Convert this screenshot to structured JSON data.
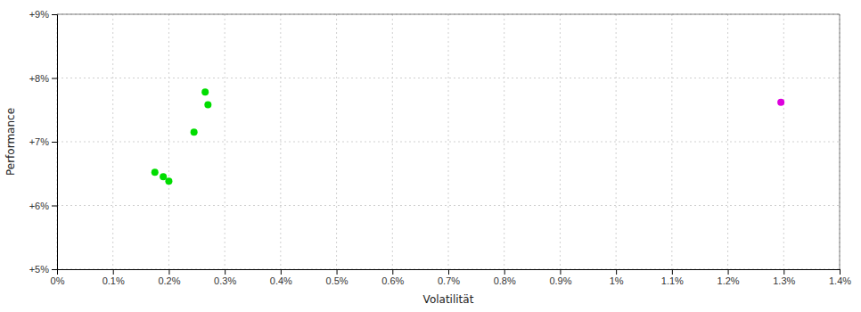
{
  "chart_data": {
    "type": "scatter",
    "xlabel": "Volatilität",
    "ylabel": "Performance",
    "xlim": [
      0.0,
      0.014
    ],
    "ylim": [
      0.05,
      0.09
    ],
    "xticks": [
      {
        "value": 0.0,
        "label": "0%"
      },
      {
        "value": 0.001,
        "label": "0.1%"
      },
      {
        "value": 0.002,
        "label": "0.2%"
      },
      {
        "value": 0.003,
        "label": "0.3%"
      },
      {
        "value": 0.004,
        "label": "0.4%"
      },
      {
        "value": 0.005,
        "label": "0.5%"
      },
      {
        "value": 0.006,
        "label": "0.6%"
      },
      {
        "value": 0.007,
        "label": "0.7%"
      },
      {
        "value": 0.008,
        "label": "0.8%"
      },
      {
        "value": 0.009,
        "label": "0.9%"
      },
      {
        "value": 0.01,
        "label": "1%"
      },
      {
        "value": 0.011,
        "label": "1.1%"
      },
      {
        "value": 0.012,
        "label": "1.2%"
      },
      {
        "value": 0.013,
        "label": "1.3%"
      },
      {
        "value": 0.014,
        "label": "1.4%"
      }
    ],
    "yticks": [
      {
        "value": 0.05,
        "label": "+5%"
      },
      {
        "value": 0.06,
        "label": "+6%"
      },
      {
        "value": 0.07,
        "label": "+7%"
      },
      {
        "value": 0.08,
        "label": "+8%"
      },
      {
        "value": 0.09,
        "label": "+9%"
      }
    ],
    "grid": true,
    "series": [
      {
        "color": "#00dd00",
        "x": [
          0.00175,
          0.0019,
          0.002,
          0.00245,
          0.00265,
          0.0027
        ],
        "values": [
          0.0652,
          0.0645,
          0.0638,
          0.0715,
          0.0778,
          0.0758
        ]
      },
      {
        "color": "#dd00dd",
        "x": [
          0.01295
        ],
        "values": [
          0.0762
        ]
      }
    ]
  }
}
